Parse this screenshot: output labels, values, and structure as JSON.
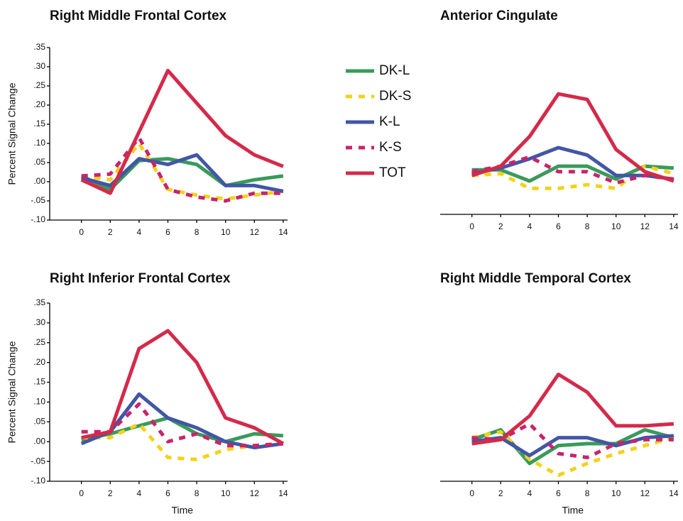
{
  "chart_data": [
    {
      "type": "line",
      "title": "Right Middle Frontal Cortex",
      "ylabel": "Percent Signal Change",
      "x": [
        0,
        2,
        4,
        6,
        8,
        10,
        12,
        14
      ],
      "xlim": [
        -2.2,
        14.3
      ],
      "xticks": [
        0,
        2,
        4,
        6,
        8,
        10,
        12,
        14
      ],
      "ylim": [
        -0.1,
        0.35
      ],
      "yticks": [
        {
          "value": -0.1,
          "label": "-.10"
        },
        {
          "value": -0.05,
          "label": "-.05"
        },
        {
          "value": 0,
          "label": ".00"
        },
        {
          "value": 0.05,
          "label": ".05"
        },
        {
          "value": 0.1,
          "label": ".10"
        },
        {
          "value": 0.15,
          "label": ".15"
        },
        {
          "value": 0.2,
          "label": ".20"
        },
        {
          "value": 0.25,
          "label": ".25"
        },
        {
          "value": 0.3,
          "label": ".30"
        },
        {
          "value": 0.35,
          "label": ".35"
        }
      ],
      "series": [
        {
          "name": "DK-L",
          "color": "#3a9a5a",
          "dashed": false,
          "values": [
            0.015,
            -0.02,
            0.055,
            0.06,
            0.045,
            -0.01,
            0.005,
            0.015
          ]
        },
        {
          "name": "DK-S",
          "color": "#f2d21b",
          "dashed": true,
          "values": [
            0.015,
            0.005,
            0.1,
            -0.02,
            -0.035,
            -0.045,
            -0.035,
            -0.025
          ]
        },
        {
          "name": "K-L",
          "color": "#4256a6",
          "dashed": false,
          "values": [
            0.01,
            -0.01,
            0.06,
            0.045,
            0.07,
            -0.01,
            -0.01,
            -0.025
          ]
        },
        {
          "name": "K-S",
          "color": "#c8246a",
          "dashed": true,
          "values": [
            0.015,
            0.02,
            0.115,
            -0.02,
            -0.04,
            -0.05,
            -0.03,
            -0.03
          ]
        },
        {
          "name": "TOT",
          "color": "#d42a4a",
          "dashed": false,
          "values": [
            0.005,
            -0.03,
            0.13,
            0.29,
            0.205,
            0.12,
            0.07,
            0.04
          ]
        }
      ]
    },
    {
      "type": "line",
      "title": "Anterior Cingulate",
      "x": [
        0,
        2,
        4,
        6,
        8,
        10,
        12,
        14
      ],
      "xlim": [
        -2.2,
        14.3
      ],
      "xticks": [
        0,
        2,
        4,
        6,
        8,
        10,
        12,
        14
      ],
      "ylim": [
        -0.1,
        0.35
      ],
      "series": [
        {
          "color": "#3a9a5a",
          "dashed": false,
          "values": [
            0.02,
            0.02,
            -0.01,
            0.03,
            0.03,
            -0.005,
            0.03,
            0.025
          ]
        },
        {
          "color": "#f2d21b",
          "dashed": true,
          "values": [
            0.005,
            0.01,
            -0.03,
            -0.03,
            -0.02,
            -0.03,
            0.03,
            0.01
          ]
        },
        {
          "color": "#4256a6",
          "dashed": false,
          "values": [
            0.01,
            0.025,
            0.05,
            0.08,
            0.06,
            0.005,
            0.005,
            -0.005
          ]
        },
        {
          "color": "#c8246a",
          "dashed": true,
          "values": [
            0.015,
            0.03,
            0.055,
            0.015,
            0.015,
            -0.015,
            0.005,
            -0.005
          ]
        },
        {
          "color": "#d42a4a",
          "dashed": false,
          "values": [
            0.005,
            0.03,
            0.11,
            0.225,
            0.21,
            0.075,
            0.015,
            -0.01
          ]
        }
      ]
    },
    {
      "type": "line",
      "title": "Right Inferior Frontal Cortex",
      "ylabel": "Percent Signal Change",
      "xlabel": "Time",
      "x": [
        0,
        2,
        4,
        6,
        8,
        10,
        12,
        14
      ],
      "xlim": [
        -2.2,
        14.3
      ],
      "xticks": [
        0,
        2,
        4,
        6,
        8,
        10,
        12,
        14
      ],
      "ylim": [
        -0.1,
        0.35
      ],
      "yticks": [
        {
          "value": -0.1,
          "label": "-.10"
        },
        {
          "value": -0.05,
          "label": "-.05"
        },
        {
          "value": 0,
          "label": ".00"
        },
        {
          "value": 0.05,
          "label": ".05"
        },
        {
          "value": 0.1,
          "label": ".10"
        },
        {
          "value": 0.15,
          "label": ".15"
        },
        {
          "value": 0.2,
          "label": ".20"
        },
        {
          "value": 0.25,
          "label": ".25"
        },
        {
          "value": 0.3,
          "label": ".30"
        },
        {
          "value": 0.35,
          "label": ".35"
        }
      ],
      "series": [
        {
          "color": "#3a9a5a",
          "dashed": false,
          "values": [
            0.005,
            0.02,
            0.04,
            0.06,
            0.02,
            0.0,
            0.02,
            0.015
          ]
        },
        {
          "color": "#f2d21b",
          "dashed": true,
          "values": [
            0.01,
            0.01,
            0.045,
            -0.04,
            -0.045,
            -0.02,
            -0.01,
            -0.005
          ]
        },
        {
          "color": "#4256a6",
          "dashed": false,
          "values": [
            -0.005,
            0.025,
            0.12,
            0.06,
            0.035,
            0.0,
            -0.015,
            -0.005
          ]
        },
        {
          "color": "#c8246a",
          "dashed": true,
          "values": [
            0.025,
            0.025,
            0.095,
            0.0,
            0.02,
            -0.01,
            -0.01,
            -0.005
          ]
        },
        {
          "color": "#d42a4a",
          "dashed": false,
          "values": [
            0.01,
            0.025,
            0.235,
            0.28,
            0.2,
            0.06,
            0.035,
            -0.005
          ]
        }
      ]
    },
    {
      "type": "line",
      "title": "Right Middle Temporal Cortex",
      "xlabel": "Time",
      "x": [
        0,
        2,
        4,
        6,
        8,
        10,
        12,
        14
      ],
      "xlim": [
        -2.2,
        14.3
      ],
      "xticks": [
        0,
        2,
        4,
        6,
        8,
        10,
        12,
        14
      ],
      "ylim": [
        -0.1,
        0.35
      ],
      "series": [
        {
          "color": "#3a9a5a",
          "dashed": false,
          "values": [
            0.005,
            0.03,
            -0.055,
            -0.01,
            -0.005,
            -0.005,
            0.03,
            0.01
          ]
        },
        {
          "color": "#f2d21b",
          "dashed": true,
          "values": [
            0.01,
            0.025,
            -0.045,
            -0.085,
            -0.055,
            -0.03,
            -0.01,
            0.01
          ]
        },
        {
          "color": "#4256a6",
          "dashed": false,
          "values": [
            0.0,
            0.01,
            -0.035,
            0.01,
            0.01,
            -0.01,
            0.01,
            0.015
          ]
        },
        {
          "color": "#c8246a",
          "dashed": true,
          "values": [
            0.01,
            0.005,
            0.045,
            -0.03,
            -0.04,
            -0.005,
            0.005,
            0.005
          ]
        },
        {
          "color": "#d42a4a",
          "dashed": false,
          "values": [
            -0.005,
            0.005,
            0.065,
            0.17,
            0.125,
            0.04,
            0.04,
            0.045
          ]
        }
      ]
    }
  ]
}
